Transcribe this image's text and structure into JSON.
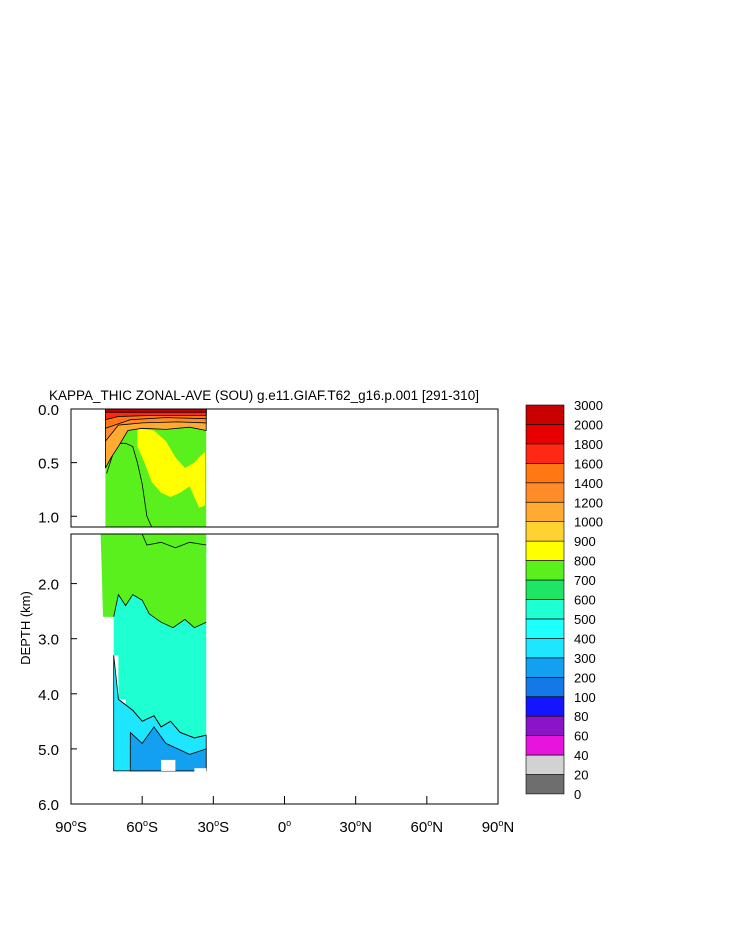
{
  "chart_data": {
    "type": "heatmap",
    "title": "KAPPA_THIC ZONAL-AVE (SOU) g.e11.GIAF.T62_g16.p.001 [291-310]",
    "xlabel": "",
    "ylabel": "DEPTH (km)",
    "x_range": [
      -90,
      90
    ],
    "y_range_upper_km": [
      0.0,
      1.1
    ],
    "y_range_lower_km": [
      1.1,
      6.0
    ],
    "x_ticks": [
      {
        "value": -90,
        "label": "90°S",
        "deg": "90",
        "hemi": "S"
      },
      {
        "value": -60,
        "label": "60°S",
        "deg": "60",
        "hemi": "S"
      },
      {
        "value": -30,
        "label": "30°S",
        "deg": "30",
        "hemi": "S"
      },
      {
        "value": 0,
        "label": "0°",
        "deg": "0",
        "hemi": ""
      },
      {
        "value": 30,
        "label": "30°N",
        "deg": "30",
        "hemi": "N"
      },
      {
        "value": 60,
        "label": "60°N",
        "deg": "60",
        "hemi": "N"
      },
      {
        "value": 90,
        "label": "90°N",
        "deg": "90",
        "hemi": "N"
      }
    ],
    "y_ticks_upper": [
      {
        "value": 0.0,
        "label": "0.0"
      },
      {
        "value": 0.5,
        "label": "0.5"
      },
      {
        "value": 1.0,
        "label": "1.0"
      }
    ],
    "y_ticks_lower": [
      {
        "value": 2.0,
        "label": "2.0"
      },
      {
        "value": 3.0,
        "label": "3.0"
      },
      {
        "value": 4.0,
        "label": "4.0"
      },
      {
        "value": 5.0,
        "label": "5.0"
      },
      {
        "value": 6.0,
        "label": "6.0"
      }
    ],
    "colorbar": {
      "levels": [
        "0",
        "20",
        "40",
        "60",
        "80",
        "100",
        "200",
        "300",
        "400",
        "500",
        "600",
        "700",
        "800",
        "900",
        "1000",
        "1200",
        "1400",
        "1600",
        "1800",
        "2000",
        "3000"
      ],
      "colors": [
        "#6e6e6e",
        "#d2d2d2",
        "#e614dc",
        "#8c14c8",
        "#1414ff",
        "#1478e6",
        "#14a0f0",
        "#1ee6ff",
        "#1effff",
        "#1effd2",
        "#1ee664",
        "#5af01e",
        "#ffff00",
        "#ffd232",
        "#ffaa32",
        "#ff8c28",
        "#ff7814",
        "#ff2814",
        "#e60000",
        "#c80000"
      ]
    },
    "bands": [
      {
        "range": "0-200 m",
        "lat": [
          -75,
          -33
        ],
        "value_range": "1200-3000"
      },
      {
        "range": "200-1000 m",
        "lat": [
          -60,
          -33
        ],
        "value_range": "800-900"
      },
      {
        "range": "200-2700 m",
        "lat": [
          -78,
          -33
        ],
        "value_range": "600-800"
      },
      {
        "range": "2700-5000 m",
        "lat": [
          -76,
          -33
        ],
        "value_range": "500-600"
      },
      {
        "range": "4000-5400 m",
        "lat": [
          -72,
          -33
        ],
        "value_range": "300-500"
      }
    ]
  }
}
